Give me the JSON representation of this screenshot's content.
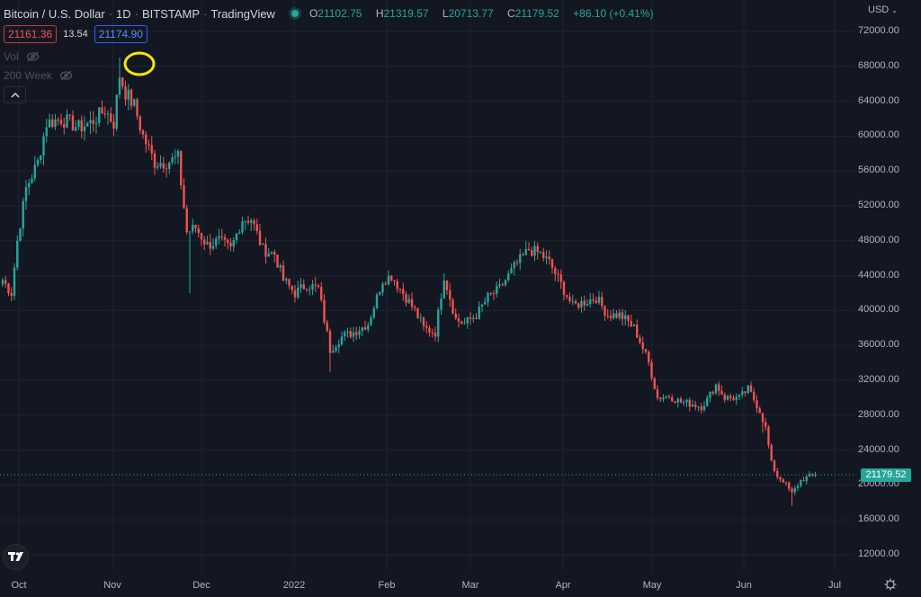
{
  "header": {
    "symbol": "Bitcoin / U.S. Dollar",
    "interval": "1D",
    "exchange": "BITSTAMP",
    "source": "TradingView",
    "ohlc": {
      "o_label": "O",
      "o": "21102.75",
      "h_label": "H",
      "h": "21319.57",
      "l_label": "L",
      "l": "20713.77",
      "c_label": "C",
      "c": "21179.52",
      "change": "+86.10 (+0.41%)"
    }
  },
  "trade": {
    "sell": "21161.36",
    "spread": "13.54",
    "buy": "21174.90"
  },
  "indicators": [
    {
      "label": "Vol",
      "icon": "eye-off-icon"
    },
    {
      "label": "200 Week",
      "icon": "eye-off-icon"
    }
  ],
  "currency": "USD",
  "last_price": "21179.52",
  "colors": {
    "up": "#26a69a",
    "down": "#ef5350",
    "background": "#131722",
    "grid": "#1f2330",
    "highlight": "#f5e60a"
  },
  "chart_data": {
    "type": "candlestick",
    "title": "Bitcoin / U.S. Dollar · 1D · BITSTAMP",
    "xlabel": "",
    "ylabel": "USD",
    "ylim": [
      10000,
      74000
    ],
    "y_ticks": [
      "72000.00",
      "68000.00",
      "64000.00",
      "60000.00",
      "56000.00",
      "52000.00",
      "48000.00",
      "44000.00",
      "40000.00",
      "36000.00",
      "32000.00",
      "28000.00",
      "24000.00",
      "20000.00",
      "16000.00",
      "12000.00"
    ],
    "x_ticks": [
      "Oct",
      "Nov",
      "Dec",
      "2022",
      "Feb",
      "Mar",
      "Apr",
      "May",
      "Jun",
      "Jul"
    ],
    "annotation": "Yellow circle marking all-time high (~69000) in early-mid November 2021",
    "last_close": 21179.52,
    "closes_weekly_approx": [
      {
        "date": "2021-10-01",
        "close": 48000
      },
      {
        "date": "2021-10-08",
        "close": 54000
      },
      {
        "date": "2021-10-15",
        "close": 61500
      },
      {
        "date": "2021-10-22",
        "close": 61000
      },
      {
        "date": "2021-10-29",
        "close": 62000
      },
      {
        "date": "2021-11-05",
        "close": 61500
      },
      {
        "date": "2021-11-10",
        "close": 65000,
        "high": 69000
      },
      {
        "date": "2021-11-17",
        "close": 60000
      },
      {
        "date": "2021-11-24",
        "close": 57000
      },
      {
        "date": "2021-12-01",
        "close": 57000
      },
      {
        "date": "2021-12-04",
        "close": 49000,
        "low": 42000
      },
      {
        "date": "2021-12-15",
        "close": 48500
      },
      {
        "date": "2021-12-27",
        "close": 50500
      },
      {
        "date": "2022-01-05",
        "close": 43500
      },
      {
        "date": "2022-01-15",
        "close": 43000
      },
      {
        "date": "2022-01-24",
        "close": 36500
      },
      {
        "date": "2022-02-01",
        "close": 38500
      },
      {
        "date": "2022-02-10",
        "close": 43500
      },
      {
        "date": "2022-02-20",
        "close": 38500
      },
      {
        "date": "2022-03-01",
        "close": 44000
      },
      {
        "date": "2022-03-10",
        "close": 39000
      },
      {
        "date": "2022-03-20",
        "close": 41500
      },
      {
        "date": "2022-03-30",
        "close": 47000
      },
      {
        "date": "2022-04-10",
        "close": 42000
      },
      {
        "date": "2022-04-20",
        "close": 41000
      },
      {
        "date": "2022-05-01",
        "close": 38500
      },
      {
        "date": "2022-05-10",
        "close": 30000
      },
      {
        "date": "2022-05-20",
        "close": 29500
      },
      {
        "date": "2022-06-01",
        "close": 30000
      },
      {
        "date": "2022-06-10",
        "close": 29000
      },
      {
        "date": "2022-06-15",
        "close": 22000
      },
      {
        "date": "2022-06-18",
        "close": 19000,
        "low": 17600
      },
      {
        "date": "2022-06-23",
        "close": 21179.52
      }
    ]
  },
  "series_anchor": [
    [
      0,
      43500
    ],
    [
      3,
      42000
    ],
    [
      5,
      48000
    ],
    [
      8,
      54000
    ],
    [
      12,
      57000
    ],
    [
      15,
      61500
    ],
    [
      20,
      62000
    ],
    [
      26,
      61000
    ],
    [
      30,
      61500
    ],
    [
      35,
      63000
    ],
    [
      38,
      61500
    ],
    [
      40,
      67000
    ],
    [
      42,
      65000
    ],
    [
      45,
      63500
    ],
    [
      48,
      60000
    ],
    [
      52,
      57000
    ],
    [
      56,
      57000
    ],
    [
      60,
      57500
    ],
    [
      63,
      49000
    ],
    [
      66,
      49500
    ],
    [
      70,
      47500
    ],
    [
      74,
      48000
    ],
    [
      78,
      47000
    ],
    [
      82,
      50500
    ],
    [
      85,
      50500
    ],
    [
      89,
      47000
    ],
    [
      93,
      46500
    ],
    [
      96,
      43500
    ],
    [
      100,
      42000
    ],
    [
      104,
      43000
    ],
    [
      108,
      42500
    ],
    [
      112,
      35500
    ],
    [
      116,
      37000
    ],
    [
      120,
      37500
    ],
    [
      125,
      38500
    ],
    [
      130,
      43500
    ],
    [
      133,
      44000
    ],
    [
      137,
      42000
    ],
    [
      141,
      40000
    ],
    [
      144,
      38000
    ],
    [
      148,
      37500
    ],
    [
      151,
      44000
    ],
    [
      155,
      39000
    ],
    [
      158,
      38500
    ],
    [
      162,
      39500
    ],
    [
      166,
      41500
    ],
    [
      170,
      42500
    ],
    [
      175,
      45000
    ],
    [
      180,
      47000
    ],
    [
      184,
      46500
    ],
    [
      187,
      45500
    ],
    [
      191,
      43000
    ],
    [
      195,
      40500
    ],
    [
      199,
      41000
    ],
    [
      203,
      41500
    ],
    [
      207,
      39500
    ],
    [
      211,
      39500
    ],
    [
      213,
      39000
    ],
    [
      216,
      38000
    ],
    [
      218,
      36500
    ],
    [
      221,
      34000
    ],
    [
      224,
      30000
    ],
    [
      228,
      30200
    ],
    [
      232,
      29500
    ],
    [
      236,
      29300
    ],
    [
      239,
      29000
    ],
    [
      241,
      29800
    ],
    [
      244,
      31500
    ],
    [
      247,
      30000
    ],
    [
      252,
      30000
    ],
    [
      255,
      31000
    ],
    [
      257,
      29800
    ],
    [
      259,
      28500
    ],
    [
      261,
      26500
    ],
    [
      263,
      22500
    ],
    [
      265,
      21000
    ],
    [
      267,
      20500
    ],
    [
      270,
      19000
    ],
    [
      273,
      20500
    ],
    [
      276,
      21000
    ],
    [
      278,
      21179.52
    ]
  ]
}
